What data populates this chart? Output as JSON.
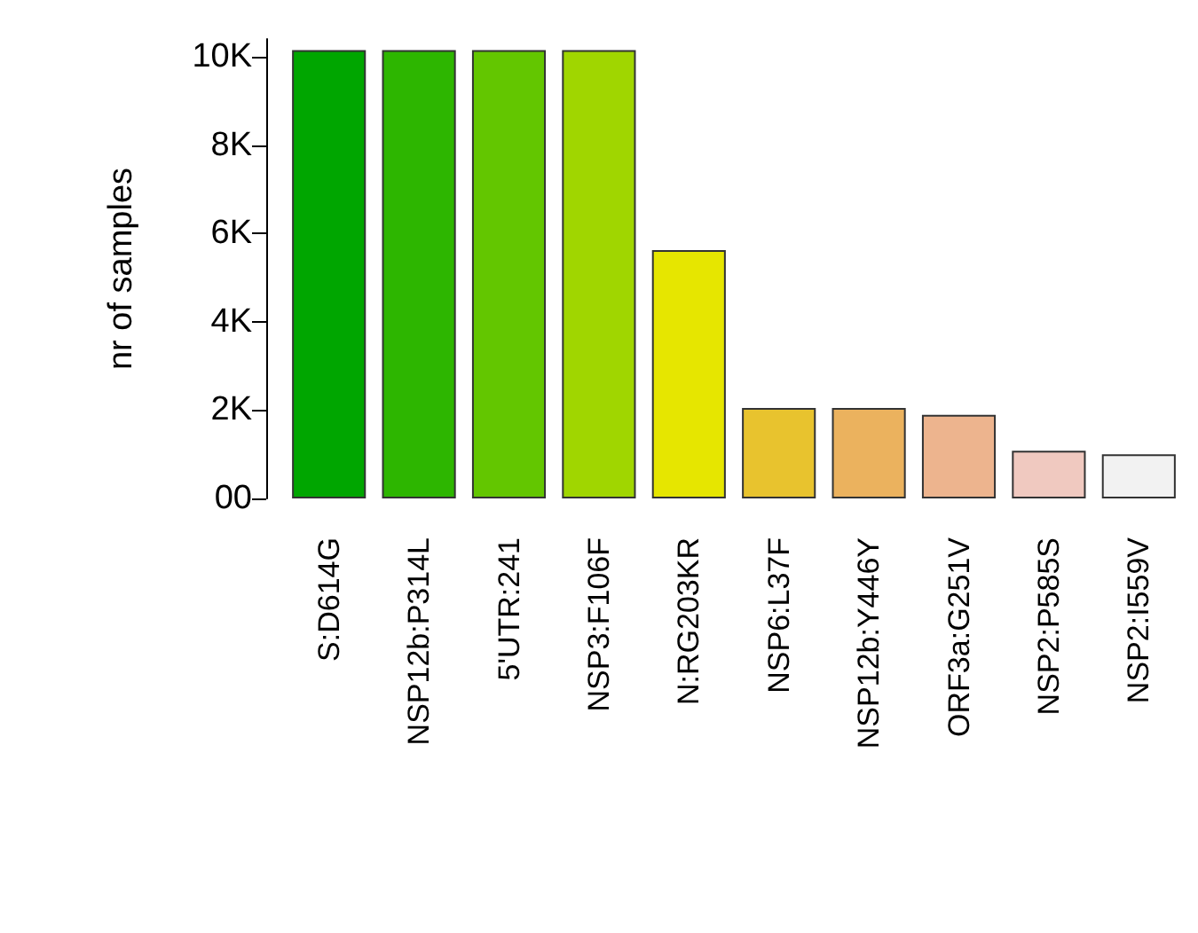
{
  "chart_data": {
    "type": "bar",
    "ylabel": "nr of samples",
    "categories": [
      "S:D614G",
      "NSP12b:P314L",
      "5'UTR:241",
      "NSP3:F106F",
      "N:RG203KR",
      "NSP6:L37F",
      "NSP12b:Y446Y",
      "ORF3a:G251V",
      "NSP2:P585S",
      "NSP2:I559V"
    ],
    "values": [
      10150,
      10150,
      10150,
      10150,
      5620,
      2050,
      2050,
      1890,
      1080,
      1000
    ],
    "colors": [
      "#00a600",
      "#2db600",
      "#63c600",
      "#a0d600",
      "#e6e600",
      "#e8c32e",
      "#ebb25e",
      "#edb48e",
      "#f0c9c0",
      "#f2f2f2"
    ],
    "ylim": [
      0,
      10400
    ],
    "yticks": [
      {
        "value": 0,
        "label": "00"
      },
      {
        "value": 2000,
        "label": "2K"
      },
      {
        "value": 4000,
        "label": "4K"
      },
      {
        "value": 6000,
        "label": "6K"
      },
      {
        "value": 8000,
        "label": "8K"
      },
      {
        "value": 10000,
        "label": "10K"
      }
    ],
    "grid": false
  }
}
